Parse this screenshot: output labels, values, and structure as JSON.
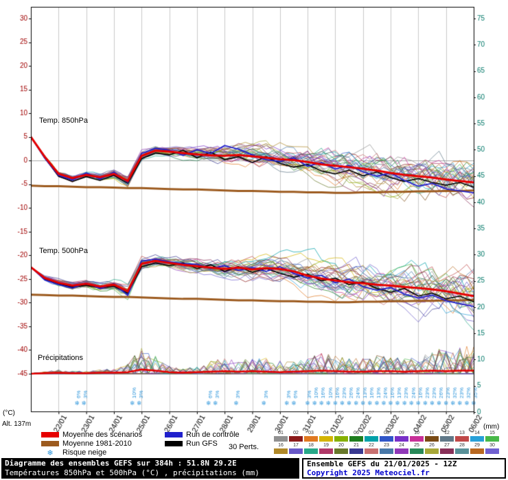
{
  "chart_data": {
    "type": "line",
    "title": "Diagramme des ensembles GEFS sur 384h : 51.8N 29.2E",
    "x_axis": {
      "hours_total": 384,
      "step_hours": 12,
      "date_labels": [
        "22/01",
        "23/01",
        "24/01",
        "25/01",
        "26/01",
        "27/01",
        "28/01",
        "29/01",
        "30/01",
        "31/01",
        "01/02",
        "02/02",
        "03/02",
        "04/02",
        "05/02",
        "06/02"
      ]
    },
    "left_axis": {
      "unit": "(°C)",
      "ticks": [
        30,
        25,
        20,
        15,
        10,
        5,
        0,
        -5,
        -10,
        -15,
        -20,
        -25,
        -30,
        -35,
        -40,
        -45
      ],
      "color": "#a00000"
    },
    "right_axis": {
      "unit": "(mm)",
      "ticks": [
        75,
        70,
        65,
        60,
        55,
        50,
        45,
        40,
        35,
        30,
        25,
        20,
        15,
        10,
        5,
        0
      ],
      "color": "#007868"
    },
    "panel_labels": {
      "t850": "Temp. 850hPa",
      "t500": "Temp. 500hPa",
      "precip": "Précipitations"
    },
    "alt_label": "Alt. 137m",
    "members": 30,
    "member_colors": [
      "#909090",
      "#8b1a1a",
      "#e07820",
      "#d4b400",
      "#86b000",
      "#1e7d1e",
      "#00a0a8",
      "#3056c8",
      "#7830c8",
      "#c83098",
      "#7a4a14",
      "#607888",
      "#c04848",
      "#28a0d8",
      "#48b848",
      "#b08828",
      "#6858c8",
      "#28a888",
      "#b03868",
      "#68782a",
      "#383890",
      "#c87070",
      "#4878a8",
      "#9038b8",
      "#288858",
      "#a8a838",
      "#883058",
      "#589098",
      "#b86820",
      "#7060d0"
    ],
    "colors": {
      "mean": "#e60000",
      "control": "#2020cc",
      "gfs": "#000000",
      "clim": "#9c5a1e",
      "snow": "#2e96dc",
      "grid": "#c9c9c9",
      "zero_line": "#a8a8a8"
    },
    "series": {
      "mean850": [
        5.0,
        0.8,
        -2.8,
        -3.7,
        -3.0,
        -3.5,
        -2.8,
        -4.3,
        1.0,
        2.1,
        1.9,
        1.6,
        1.3,
        1.1,
        1.0,
        1.2,
        0.9,
        0.6,
        0.3,
        0.1,
        -0.3,
        -0.8,
        -1.1,
        -1.4,
        -1.7,
        -2.1,
        -2.6,
        -3.0,
        -3.3,
        -3.6,
        -4.0,
        -4.3,
        -4.6
      ],
      "control850": [
        5.0,
        0.5,
        -3.1,
        -4.1,
        -2.6,
        -3.9,
        -2.4,
        -4.6,
        1.5,
        2.6,
        2.2,
        1.1,
        2.3,
        1.5,
        3.2,
        2.4,
        1.2,
        0.2,
        -0.2,
        0.6,
        -1.2,
        -0.4,
        -1.8,
        -1.0,
        -2.4,
        -3.3,
        -2.6,
        -4.2,
        -5.4,
        -4.8,
        -6.0,
        -6.4,
        -6.8
      ],
      "gfs850": [
        5.0,
        0.6,
        -3.3,
        -4.4,
        -3.4,
        -4.2,
        -3.1,
        -4.8,
        0.4,
        1.6,
        1.2,
        2.2,
        0.6,
        1.8,
        0.2,
        0.8,
        -0.4,
        0.8,
        -0.6,
        -1.4,
        -0.8,
        -2.2,
        -2.8,
        -2.0,
        -3.2,
        -2.4,
        -3.6,
        -4.4,
        -3.8,
        -4.6,
        -5.2,
        -4.6,
        -5.6
      ],
      "clim850": [
        -5.3,
        -5.4,
        -5.4,
        -5.5,
        -5.6,
        -5.6,
        -5.7,
        -5.8,
        -5.8,
        -5.9,
        -6.0,
        -6.1,
        -6.1,
        -6.2,
        -6.3,
        -6.4,
        -6.4,
        -6.5,
        -6.6,
        -6.6,
        -6.7,
        -6.7,
        -6.8,
        -6.8,
        -6.7,
        -6.7,
        -6.6,
        -6.6,
        -6.5,
        -6.5,
        -6.4,
        -6.4,
        -6.3
      ],
      "mean500": [
        -22.5,
        -24.8,
        -25.8,
        -26.4,
        -26.0,
        -26.6,
        -26.2,
        -27.6,
        -21.8,
        -21.2,
        -21.6,
        -22.0,
        -22.3,
        -22.6,
        -22.9,
        -22.6,
        -23.0,
        -22.7,
        -22.9,
        -23.4,
        -24.3,
        -24.9,
        -25.3,
        -25.7,
        -25.9,
        -26.2,
        -26.4,
        -26.7,
        -26.9,
        -27.2,
        -27.6,
        -28.1,
        -28.6
      ],
      "control500": [
        -22.5,
        -25.2,
        -26.2,
        -26.9,
        -25.8,
        -27.0,
        -26.0,
        -28.4,
        -21.2,
        -20.8,
        -21.4,
        -21.8,
        -21.9,
        -22.8,
        -22.2,
        -23.2,
        -22.6,
        -23.4,
        -22.4,
        -23.8,
        -24.8,
        -24.2,
        -25.8,
        -25.0,
        -26.6,
        -27.4,
        -26.8,
        -28.2,
        -29.0,
        -28.4,
        -29.6,
        -30.2,
        -30.8
      ],
      "gfs500": [
        -22.5,
        -25.0,
        -26.0,
        -26.7,
        -26.3,
        -26.9,
        -26.5,
        -28.0,
        -22.4,
        -21.6,
        -22.2,
        -21.6,
        -22.8,
        -22.0,
        -23.4,
        -22.4,
        -23.6,
        -22.8,
        -23.8,
        -24.6,
        -24.0,
        -25.4,
        -24.8,
        -26.2,
        -25.6,
        -27.0,
        -27.8,
        -27.0,
        -28.6,
        -28.0,
        -29.2,
        -28.6,
        -29.8
      ],
      "clim500": [
        -28.3,
        -28.4,
        -28.5,
        -28.5,
        -28.6,
        -28.7,
        -28.8,
        -28.8,
        -28.9,
        -29.0,
        -29.1,
        -29.2,
        -29.2,
        -29.3,
        -29.4,
        -29.5,
        -29.5,
        -29.6,
        -29.7,
        -29.7,
        -29.8,
        -29.8,
        -29.9,
        -29.9,
        -29.8,
        -29.8,
        -29.7,
        -29.7,
        -29.6,
        -29.6,
        -29.5,
        -29.5,
        -29.4
      ],
      "spread850": [
        0.1,
        0.4,
        0.5,
        0.6,
        0.6,
        0.7,
        0.8,
        1.0,
        1.0,
        0.9,
        1.0,
        1.1,
        1.2,
        1.4,
        1.6,
        1.8,
        2.0,
        2.2,
        2.4,
        2.6,
        2.8,
        3.0,
        3.2,
        3.3,
        3.5,
        3.6,
        3.8,
        3.9,
        4.0,
        4.2,
        4.3,
        4.4,
        4.5
      ],
      "spread500": [
        0.2,
        0.5,
        0.6,
        0.7,
        0.8,
        0.9,
        1.0,
        1.3,
        1.2,
        1.0,
        1.1,
        1.2,
        1.4,
        1.6,
        1.8,
        2.0,
        2.2,
        2.4,
        2.6,
        2.8,
        3.0,
        3.2,
        3.4,
        3.6,
        3.7,
        3.9,
        4.0,
        4.2,
        4.3,
        4.5,
        4.6,
        4.8,
        5.0
      ],
      "precip_mean": [
        0,
        0.1,
        0.2,
        0.1,
        0.1,
        0.2,
        0.2,
        0.3,
        0.8,
        0.6,
        0.3,
        0.2,
        0.3,
        0.4,
        0.5,
        0.4,
        0.5,
        0.4,
        0.3,
        0.4,
        0.5,
        0.6,
        0.5,
        0.4,
        0.4,
        0.5,
        0.5,
        0.4,
        0.5,
        0.6,
        0.5,
        0.6,
        0.6
      ],
      "precip_activity": [
        0,
        0.5,
        0.8,
        0.5,
        0.5,
        0.8,
        1.0,
        2.0,
        5.0,
        3.5,
        1.5,
        1.0,
        1.5,
        2.5,
        3.0,
        2.5,
        3.0,
        3.0,
        2.5,
        2.5,
        3.0,
        4.0,
        3.5,
        3.0,
        3.0,
        3.5,
        3.5,
        3.0,
        4.0,
        5.0,
        4.5,
        5.0,
        5.5
      ]
    },
    "snow_risk": [
      [
        40,
        "6%"
      ],
      [
        46,
        "3%"
      ],
      [
        88,
        "10%"
      ],
      [
        94,
        "3%"
      ],
      [
        154,
        "6%"
      ],
      [
        160,
        "3%"
      ],
      [
        178,
        "3%"
      ],
      [
        202,
        "3%"
      ],
      [
        222,
        "3%"
      ],
      [
        228,
        "6%"
      ],
      [
        240,
        "3%"
      ],
      [
        246,
        "10%"
      ],
      [
        252,
        "16%"
      ],
      [
        258,
        "10%"
      ],
      [
        264,
        "16%"
      ],
      [
        270,
        "23%"
      ],
      [
        276,
        "26%"
      ],
      [
        282,
        "24%"
      ],
      [
        288,
        "13%"
      ],
      [
        294,
        "16%"
      ],
      [
        300,
        "13%"
      ],
      [
        306,
        "24%"
      ],
      [
        312,
        "16%"
      ],
      [
        318,
        "13%"
      ],
      [
        324,
        "23%"
      ],
      [
        330,
        "24%"
      ],
      [
        336,
        "16%"
      ],
      [
        342,
        "23%"
      ],
      [
        348,
        "23%"
      ],
      [
        354,
        "26%"
      ],
      [
        360,
        "23%"
      ],
      [
        366,
        "32%"
      ],
      [
        372,
        "23%"
      ],
      [
        378,
        "32%"
      ],
      [
        384,
        "35%"
      ]
    ]
  },
  "legend": {
    "mean": "Moyenne des scénarios",
    "clim": "Moyenne 1981-2010",
    "snow": "Risque neige",
    "snow_icon": "❄",
    "control": "Run de contrôle",
    "gfs": "Run GFS",
    "perts": "30 Perts.",
    "pert_numbers": [
      "01",
      "02",
      "03",
      "04",
      "05",
      "06",
      "07",
      "08",
      "09",
      "10",
      "11",
      "12",
      "13",
      "14",
      "15",
      "16",
      "17",
      "18",
      "19",
      "20",
      "21",
      "22",
      "23",
      "24",
      "25",
      "26",
      "27",
      "28",
      "29",
      "30"
    ]
  },
  "footer": {
    "left_line1": "Diagramme des ensembles GEFS sur 384h : 51.8N 29.2E",
    "left_line2": "Températures 850hPa et 500hPa (°C) , précipitations (mm)",
    "right_line1": "Ensemble GEFS du 21/01/2025 - 12Z",
    "right_line2": "Copyright 2025 Meteociel.fr"
  }
}
